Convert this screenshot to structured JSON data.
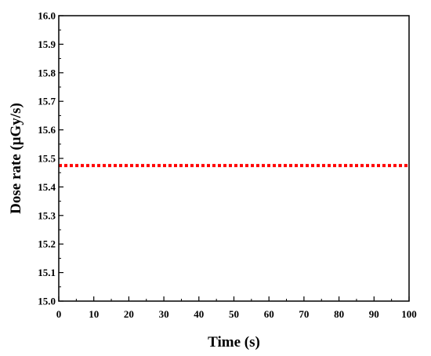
{
  "chart_data": {
    "type": "line",
    "xlabel": "Time (s)",
    "ylabel": "Dose rate (μGy/s)",
    "xlim": [
      0,
      100
    ],
    "ylim": [
      15.0,
      16.0
    ],
    "xticks": [
      0,
      10,
      20,
      30,
      40,
      50,
      60,
      70,
      80,
      90,
      100
    ],
    "yticks": [
      "15.0",
      "15.1",
      "15.2",
      "15.3",
      "15.4",
      "15.5",
      "15.6",
      "15.7",
      "15.8",
      "15.9",
      "16.0"
    ],
    "grid": false,
    "series": [
      {
        "x": [
          0,
          100
        ],
        "values": [
          15.475,
          15.475
        ],
        "color": "#ff0000",
        "style": "dotted"
      }
    ]
  }
}
